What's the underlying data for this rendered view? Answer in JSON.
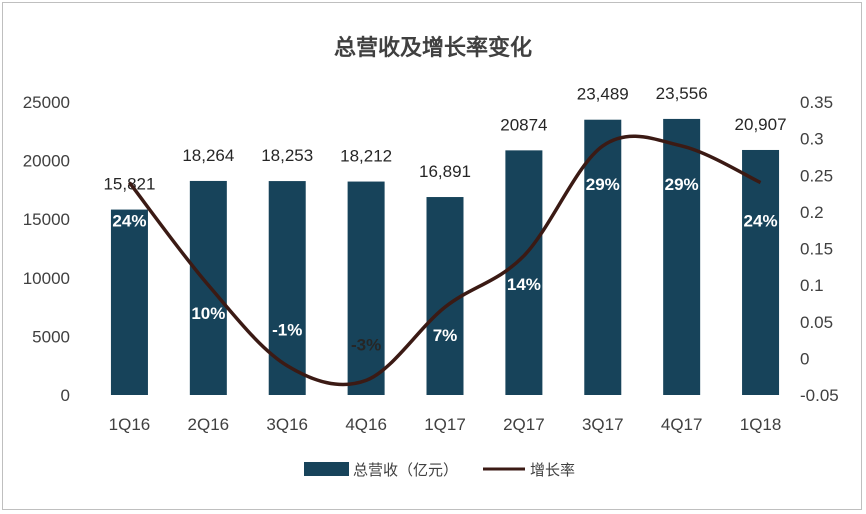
{
  "chart_data": {
    "type": "bar",
    "title": "总营收及增长率变化",
    "categories": [
      "1Q16",
      "2Q16",
      "3Q16",
      "4Q16",
      "1Q17",
      "2Q17",
      "3Q17",
      "4Q17",
      "1Q18"
    ],
    "series": [
      {
        "name": "总营收（亿元）",
        "type": "bar",
        "axis": "left",
        "values": [
          15821,
          18264,
          18253,
          18212,
          16891,
          20874,
          23489,
          23556,
          20907
        ],
        "labels": [
          "15,821",
          "18,264",
          "18,253",
          "18,212",
          "16,891",
          "20874",
          "23,489",
          "23,556",
          "20,907"
        ],
        "color": "#17435a"
      },
      {
        "name": "增长率",
        "type": "line",
        "axis": "right",
        "values": [
          0.24,
          0.1,
          -0.01,
          -0.03,
          0.07,
          0.14,
          0.29,
          0.29,
          0.24
        ],
        "labels": [
          "24%",
          "10%",
          "-1%",
          "-3%",
          "7%",
          "14%",
          "29%",
          "29%",
          "24%"
        ],
        "color": "#3b1a14"
      }
    ],
    "y_left": {
      "ylim": [
        0,
        25000
      ],
      "ticks": [
        "0",
        "5000",
        "10000",
        "15000",
        "20000",
        "25000"
      ]
    },
    "y_right": {
      "ylim": [
        -0.05,
        0.35
      ],
      "ticks": [
        "-0.05",
        "0",
        "0.05",
        "0.1",
        "0.15",
        "0.2",
        "0.25",
        "0.3",
        "0.35"
      ]
    },
    "grid": false,
    "legend": "bottom"
  }
}
